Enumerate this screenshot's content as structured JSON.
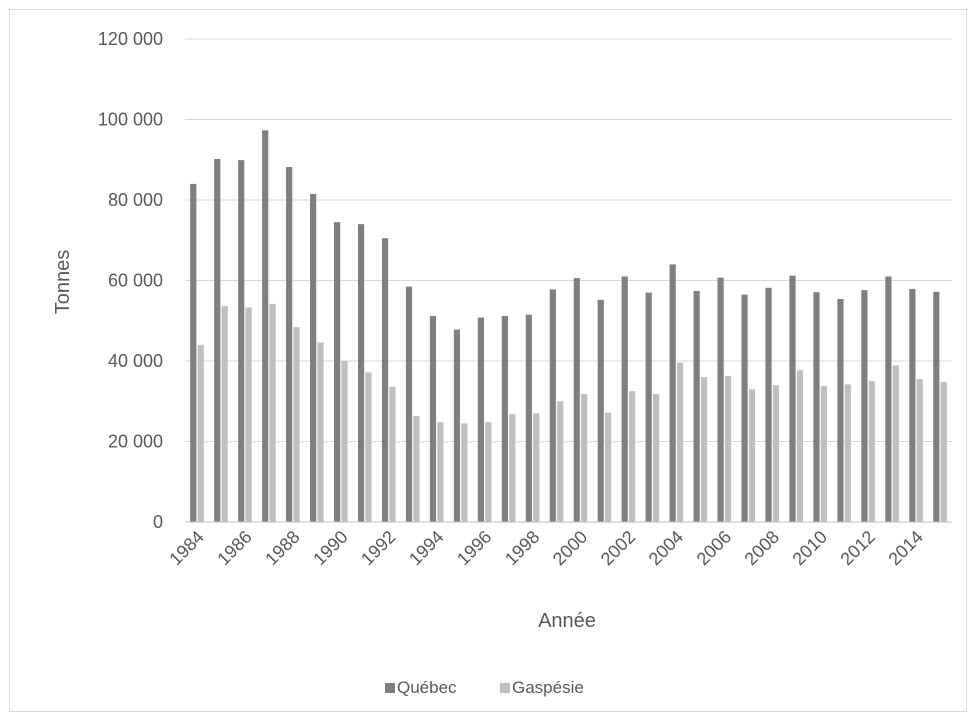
{
  "chart_data": {
    "type": "bar",
    "title": "",
    "xlabel": "Année",
    "ylabel": "Tonnes",
    "ylim": [
      0,
      120000
    ],
    "y_ticks": [
      0,
      20000,
      40000,
      60000,
      80000,
      100000,
      120000
    ],
    "y_tick_labels": [
      "0",
      "20 000",
      "40 000",
      "60 000",
      "80 000",
      "100 000",
      "120 000"
    ],
    "categories": [
      "1984",
      "1985",
      "1986",
      "1987",
      "1988",
      "1989",
      "1990",
      "1991",
      "1992",
      "1993",
      "1994",
      "1995",
      "1996",
      "1997",
      "1998",
      "1999",
      "2000",
      "2001",
      "2002",
      "2003",
      "2004",
      "2005",
      "2006",
      "2007",
      "2008",
      "2009",
      "2010",
      "2011",
      "2012",
      "2013",
      "2014",
      "2015"
    ],
    "x_tick_labels": [
      "1984",
      "1986",
      "1988",
      "1990",
      "1992",
      "1994",
      "1996",
      "1998",
      "2000",
      "2002",
      "2004",
      "2006",
      "2008",
      "2010",
      "2012",
      "2014"
    ],
    "grid": true,
    "legend_position": "bottom",
    "series": [
      {
        "name": "Québec",
        "color": "#7f7f7f",
        "values": [
          84000,
          90200,
          89900,
          97300,
          88200,
          81500,
          74500,
          74000,
          70500,
          58500,
          51200,
          47800,
          50800,
          51200,
          51500,
          57800,
          60600,
          55200,
          61000,
          57000,
          64000,
          57400,
          60700,
          56500,
          58200,
          61200,
          57100,
          55400,
          57600,
          61000,
          57900,
          57200
        ]
      },
      {
        "name": "Gaspésie",
        "color": "#bfbfbf",
        "values": [
          44000,
          53600,
          53300,
          54200,
          48400,
          44600,
          40000,
          37200,
          33600,
          26300,
          24800,
          24500,
          24800,
          26800,
          27000,
          30000,
          31800,
          27200,
          32500,
          31800,
          39600,
          36000,
          36300,
          33000,
          34000,
          37700,
          33800,
          34200,
          35000,
          38900,
          35500,
          34800
        ]
      }
    ]
  }
}
